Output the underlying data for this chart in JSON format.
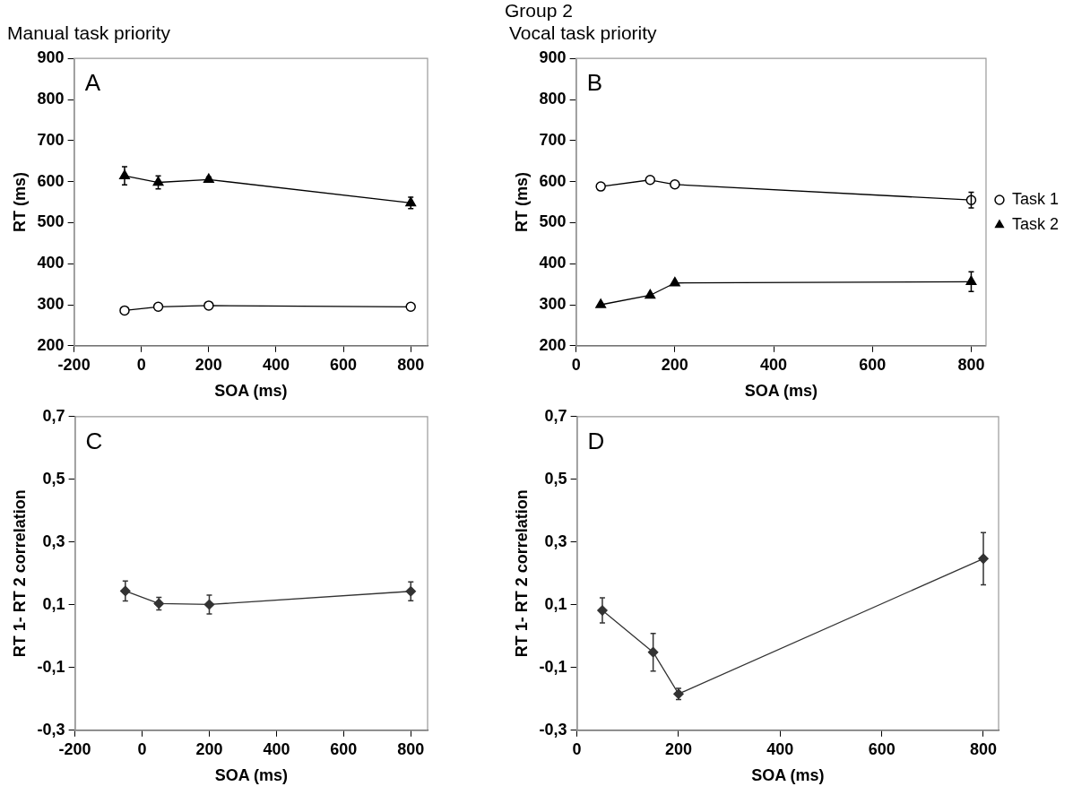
{
  "chart_data": [
    {
      "type": "line",
      "subtitle": "Manual task priority",
      "xlabel": "SOA (ms)",
      "ylabel": "RT (ms)",
      "annotations": [
        "A"
      ],
      "xlim": [
        -200,
        850
      ],
      "xticks": [
        -200,
        0,
        200,
        400,
        600,
        800
      ],
      "ylim": [
        200,
        900
      ],
      "yticks": [
        200,
        300,
        400,
        500,
        600,
        700,
        800,
        900
      ],
      "grid": false,
      "legend": false,
      "series": [
        {
          "color": "#000000",
          "marker": "circle",
          "x": [
            -50,
            50,
            200,
            800
          ],
          "values": [
            286,
            295,
            298,
            295
          ]
        },
        {
          "color": "#000000",
          "marker": "triangle",
          "x": [
            -50,
            50,
            200,
            800
          ],
          "values": [
            614,
            598,
            605,
            548
          ],
          "errors": [
            22,
            16,
            6,
            14
          ]
        }
      ]
    },
    {
      "type": "line",
      "title": "Group 2",
      "subtitle": "Vocal task priority",
      "xlabel": "SOA (ms)",
      "ylabel": "RT (ms)",
      "annotations": [
        "B"
      ],
      "xlim": [
        0,
        830
      ],
      "xticks": [
        0,
        200,
        400,
        600,
        800
      ],
      "ylim": [
        200,
        900
      ],
      "yticks": [
        200,
        300,
        400,
        500,
        600,
        700,
        800,
        900
      ],
      "grid": false,
      "legend": "right",
      "series": [
        {
          "name": "Task 1",
          "color": "#000000",
          "marker": "circle",
          "x": [
            50,
            150,
            200,
            800
          ],
          "values": [
            588,
            604,
            593,
            555
          ],
          "errors": [
            null,
            null,
            null,
            19
          ]
        },
        {
          "name": "Task 2",
          "color": "#000000",
          "marker": "triangle",
          "x": [
            50,
            150,
            200,
            800
          ],
          "values": [
            300,
            323,
            353,
            356
          ],
          "errors": [
            null,
            null,
            null,
            24
          ]
        }
      ]
    },
    {
      "type": "line",
      "xlabel": "SOA (ms)",
      "ylabel": "RT 1- RT 2 correlation",
      "annotations": [
        "C"
      ],
      "xlim": [
        -200,
        850
      ],
      "xticks": [
        -200,
        0,
        200,
        400,
        600,
        800
      ],
      "ylim": [
        -0.3,
        0.7
      ],
      "yticks": [
        {
          "value": -0.3,
          "label": "-0,3"
        },
        {
          "value": -0.1,
          "label": "-0,1"
        },
        {
          "value": 0.1,
          "label": "0,1"
        },
        {
          "value": 0.3,
          "label": "0,3"
        },
        {
          "value": 0.5,
          "label": "0,5"
        },
        {
          "value": 0.7,
          "label": "0,7"
        }
      ],
      "grid": false,
      "legend": false,
      "series": [
        {
          "color": "#333333",
          "marker": "diamond",
          "x": [
            -50,
            50,
            200,
            800
          ],
          "values": [
            0.144,
            0.104,
            0.101,
            0.143
          ],
          "errors": [
            0.032,
            0.02,
            0.03,
            0.03
          ]
        }
      ]
    },
    {
      "type": "line",
      "xlabel": "SOA (ms)",
      "ylabel": "RT 1- RT 2 correlation",
      "annotations": [
        "D"
      ],
      "xlim": [
        0,
        830
      ],
      "xticks": [
        0,
        200,
        400,
        600,
        800
      ],
      "ylim": [
        -0.3,
        0.7
      ],
      "yticks": [
        {
          "value": -0.3,
          "label": "-0,3"
        },
        {
          "value": -0.1,
          "label": "-0,1"
        },
        {
          "value": 0.1,
          "label": "0,1"
        },
        {
          "value": 0.3,
          "label": "0,3"
        },
        {
          "value": 0.5,
          "label": "0,5"
        },
        {
          "value": 0.7,
          "label": "0,7"
        }
      ],
      "grid": false,
      "legend": false,
      "series": [
        {
          "color": "#333333",
          "marker": "diamond",
          "x": [
            50,
            150,
            200,
            800
          ],
          "values": [
            0.082,
            -0.051,
            -0.184,
            0.247
          ],
          "errors": [
            0.04,
            0.06,
            0.018,
            0.083
          ]
        }
      ]
    }
  ]
}
